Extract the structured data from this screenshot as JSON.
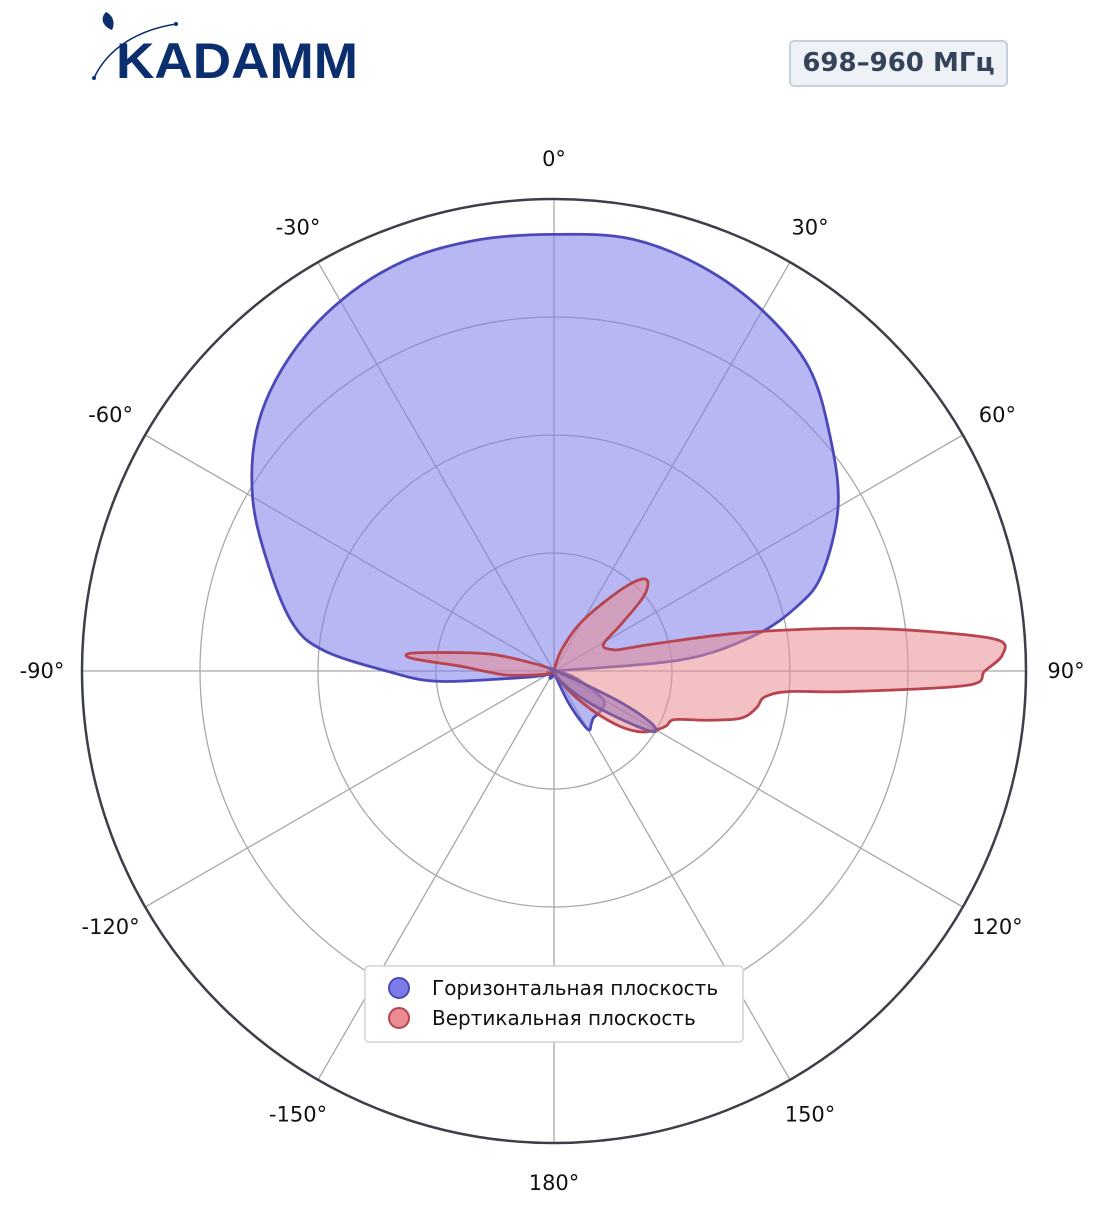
{
  "logo": {
    "text": "KADAMM",
    "color": "#0b2f6e"
  },
  "badge": {
    "label": "698–960 МГц"
  },
  "chart_data": {
    "type": "polar-area",
    "angle_unit": "deg",
    "zero_location": "top",
    "direction": "clockwise",
    "rlim": [
      0,
      40
    ],
    "rgrid": [
      10,
      20,
      30,
      40
    ],
    "grid": true,
    "legend_placement": "lower-center",
    "theta_tick_labels": [
      "0°",
      "30°",
      "60°",
      "90°",
      "120°",
      "150°",
      "180°",
      "-150°",
      "-120°",
      "-90°",
      "-60°",
      "-30°"
    ],
    "series": [
      {
        "name": "Горизонтальная плоскость",
        "color": "#4b49b8",
        "fill": "#7b7bea",
        "points": [
          [
            0,
            37
          ],
          [
            10,
            37.2
          ],
          [
            20,
            36.5
          ],
          [
            30,
            35.3
          ],
          [
            40,
            33.6
          ],
          [
            50,
            30.6
          ],
          [
            60,
            27.8
          ],
          [
            70,
            24.2
          ],
          [
            75,
            21.4
          ],
          [
            80,
            17.2
          ],
          [
            85,
            10.8
          ],
          [
            90,
            0.1
          ],
          [
            100,
            0.8
          ],
          [
            110,
            2.3
          ],
          [
            120,
            4.8
          ],
          [
            130,
            5.2
          ],
          [
            140,
            5.2
          ],
          [
            145,
            5.5
          ],
          [
            150,
            5.7
          ],
          [
            155,
            3.2
          ],
          [
            160,
            0.8
          ],
          [
            165,
            0.3
          ],
          [
            170,
            0.3
          ],
          [
            175,
            0.3
          ],
          [
            180,
            0.3
          ],
          [
            -175,
            0.3
          ],
          [
            -170,
            0.3
          ],
          [
            -165,
            0.4
          ],
          [
            -160,
            0.6
          ],
          [
            -150,
            0.7
          ],
          [
            -140,
            0.4
          ],
          [
            -130,
            0.5
          ],
          [
            -120,
            0.6
          ],
          [
            -110,
            1.2
          ],
          [
            -100,
            3.5
          ],
          [
            -95,
            10
          ],
          [
            -90,
            14.2
          ],
          [
            -85,
            19.5
          ],
          [
            -80,
            22.4
          ],
          [
            -70,
            25.7
          ],
          [
            -60,
            29.5
          ],
          [
            -50,
            32.7
          ],
          [
            -40,
            34.8
          ],
          [
            -30,
            36.2
          ],
          [
            -20,
            37
          ],
          [
            -10,
            37.1
          ],
          [
            0,
            37
          ]
        ]
      },
      {
        "name": "Вертикальная плоскость",
        "color": "#b84450",
        "fill": "#e98d93",
        "points": [
          [
            0,
            0.1
          ],
          [
            20,
            2
          ],
          [
            30,
            5
          ],
          [
            40,
            9.2
          ],
          [
            45,
            11
          ],
          [
            50,
            10
          ],
          [
            55,
            7
          ],
          [
            60,
            5
          ],
          [
            65,
            4.7
          ],
          [
            70,
            5.3
          ],
          [
            72,
            5.9
          ],
          [
            75,
            9
          ],
          [
            78,
            15
          ],
          [
            80,
            20
          ],
          [
            82,
            26
          ],
          [
            84,
            32
          ],
          [
            86,
            37.7
          ],
          [
            88,
            38
          ],
          [
            90,
            36.5
          ],
          [
            92,
            35
          ],
          [
            94,
            25
          ],
          [
            95,
            20
          ],
          [
            97,
            18
          ],
          [
            100,
            17.5
          ],
          [
            103,
            16.8
          ],
          [
            105,
            15.8
          ],
          [
            108,
            13.5
          ],
          [
            112,
            11
          ],
          [
            116,
            10.6
          ],
          [
            120,
            10
          ],
          [
            125,
            9
          ],
          [
            130,
            7.3
          ],
          [
            135,
            5
          ],
          [
            140,
            3
          ],
          [
            145,
            1.5
          ],
          [
            160,
            0.3
          ],
          [
            180,
            0.1
          ],
          [
            -150,
            0.1
          ],
          [
            -130,
            0.3
          ],
          [
            -110,
            0.8
          ],
          [
            -100,
            2
          ],
          [
            -95,
            4
          ],
          [
            -90,
            6
          ],
          [
            -87,
            8
          ],
          [
            -85,
            12
          ],
          [
            -83,
            12.3
          ],
          [
            -80,
            9
          ],
          [
            -75,
            5.5
          ],
          [
            -70,
            2
          ],
          [
            -60,
            0.5
          ],
          [
            -30,
            0.1
          ],
          [
            0,
            0.1
          ]
        ]
      },
      {
        "name": "",
        "color": "#7f5a9a",
        "fill": "#9b72b5",
        "points": [
          [
            0,
            0.1
          ],
          [
            115,
            6
          ],
          [
            118,
            9.2
          ],
          [
            121,
            10
          ],
          [
            124,
            8.2
          ],
          [
            130,
            4.8
          ],
          [
            137,
            2.5
          ],
          [
            150,
            0.8
          ],
          [
            180,
            0.1
          ],
          [
            0,
            0.1
          ]
        ]
      }
    ]
  }
}
